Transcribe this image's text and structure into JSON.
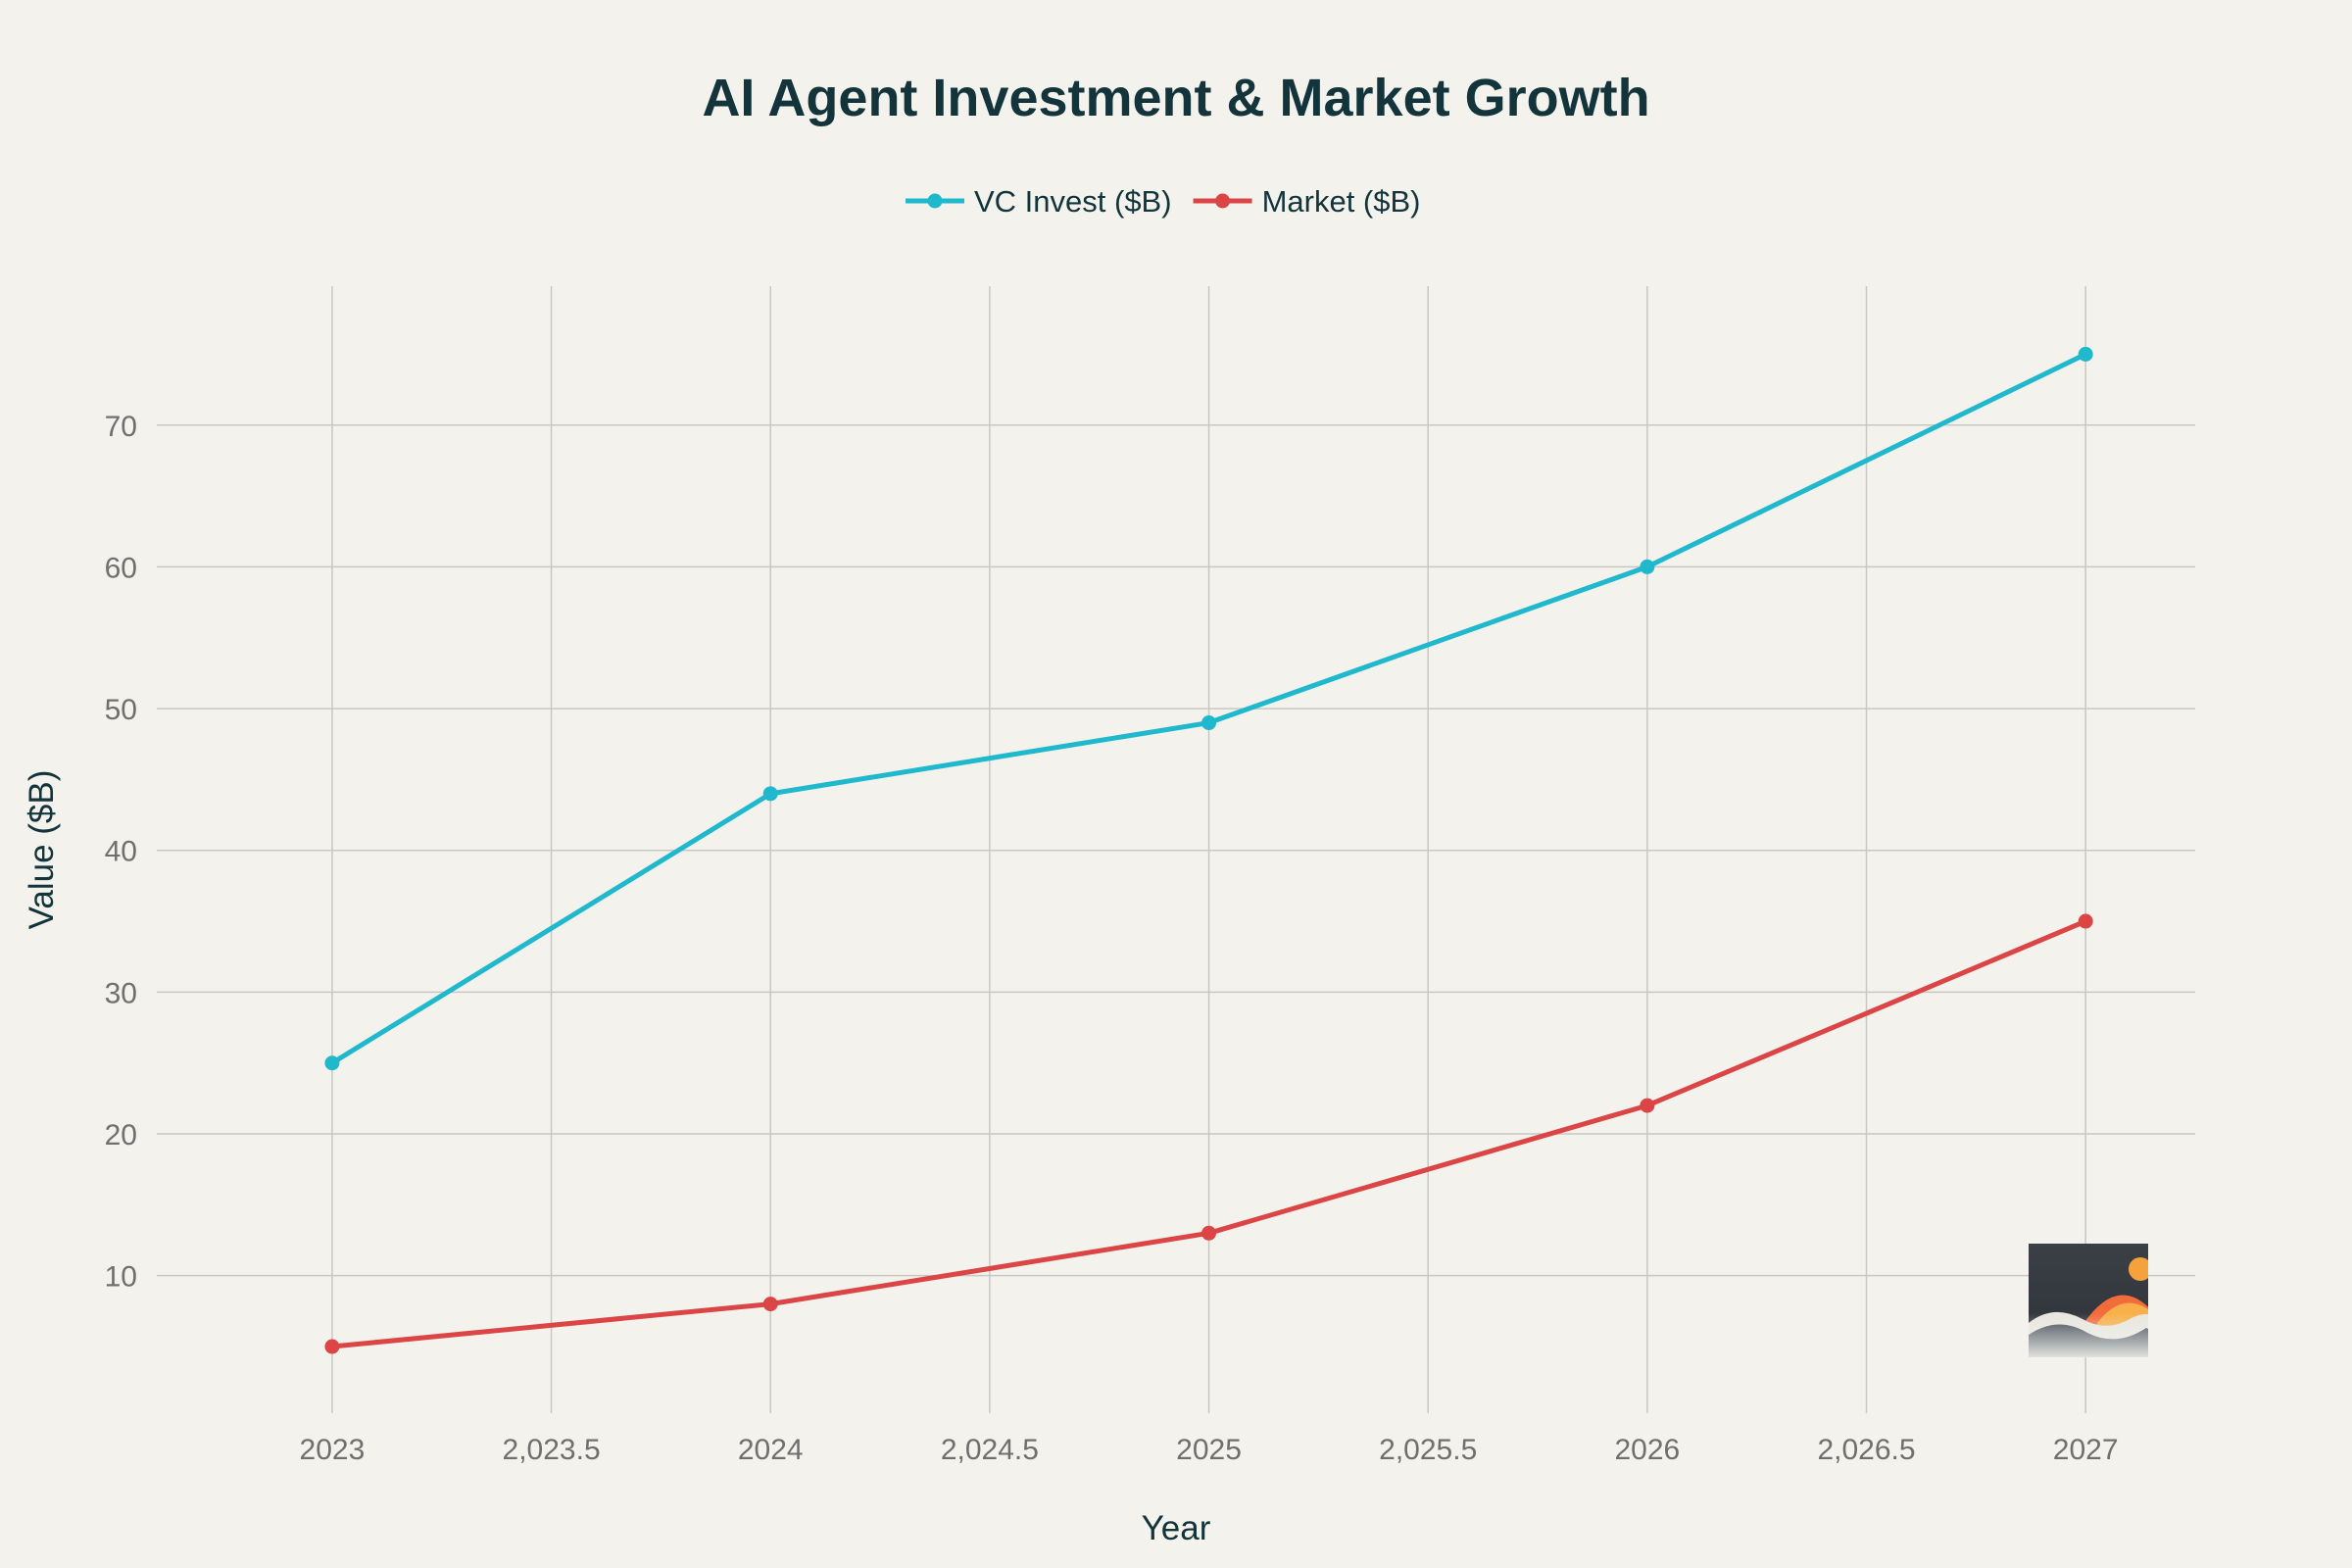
{
  "chart_data": {
    "type": "line",
    "title": "AI Agent Investment & Market Growth",
    "xlabel": "Year",
    "ylabel": "Value ($B)",
    "x": [
      2023,
      2024,
      2025,
      2026,
      2027
    ],
    "x_ticks": [
      "2023",
      "2,023.5",
      "2024",
      "2,024.5",
      "2025",
      "2,025.5",
      "2026",
      "2,026.5",
      "2027"
    ],
    "x_tick_values": [
      2023,
      2023.5,
      2024,
      2024.5,
      2025,
      2025.5,
      2026,
      2026.5,
      2027
    ],
    "xlim": [
      2022.6,
      2027.25
    ],
    "y_ticks": [
      "10",
      "20",
      "30",
      "40",
      "50",
      "60",
      "70"
    ],
    "y_tick_values": [
      10,
      20,
      30,
      40,
      50,
      60,
      70
    ],
    "ylim": [
      0.3,
      79.8
    ],
    "grid": true,
    "legend_position": "top-center",
    "series": [
      {
        "name": "VC Invest ($B)",
        "values": [
          25,
          44,
          49,
          60,
          75
        ],
        "color": "#1fb8cd"
      },
      {
        "name": "Market ($B)",
        "values": [
          5,
          8,
          13,
          22,
          35
        ],
        "color": "#db4545"
      }
    ]
  },
  "colors": {
    "background": "#f3f2ed",
    "title": "#13343b",
    "tick": "#6f6f6f",
    "grid": "#c8c8c2"
  }
}
